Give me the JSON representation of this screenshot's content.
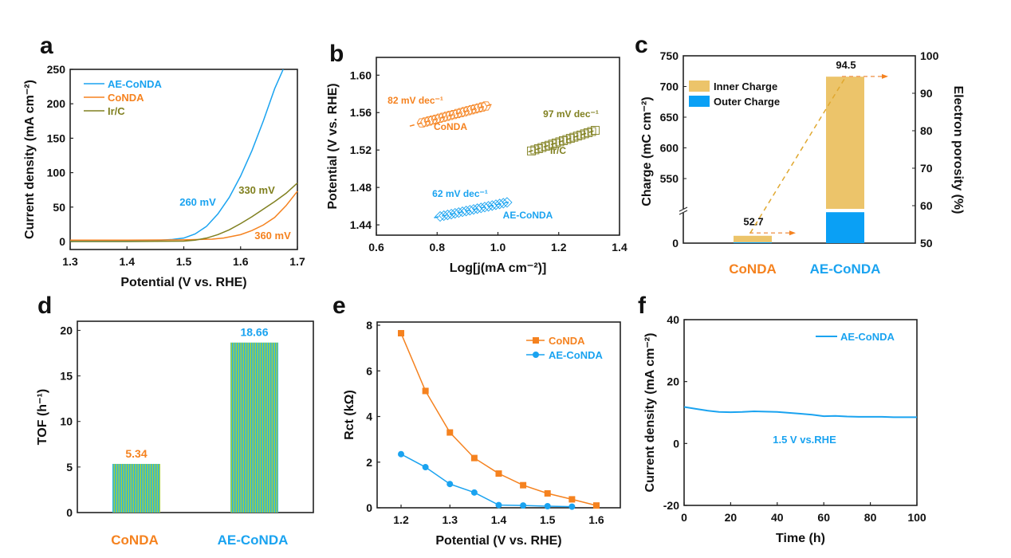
{
  "colors": {
    "ae": "#1aa3f0",
    "conda": "#f5821f",
    "irc": "#808020",
    "inner": "#ecc46a",
    "outer": "#0aa0f5",
    "bar_a": "#a6d13a",
    "bar_b": "#29b3e6"
  },
  "chart_data": [
    {
      "panel": "a",
      "type": "line",
      "xlabel": "Potential (V vs. RHE)",
      "ylabel": "Current density (mA cm⁻²)",
      "xlim": [
        1.3,
        1.7
      ],
      "ylim": [
        -11.6,
        250
      ],
      "xticks": [
        "1.3",
        "1.4",
        "1.5",
        "1.6",
        "1.7"
      ],
      "yticks": [
        "0",
        "50",
        "100",
        "150",
        "200",
        "250"
      ],
      "legend": "top-left",
      "series": [
        {
          "name": "AE-CoNDA",
          "color": "ae",
          "x": [
            1.3,
            1.4,
            1.46,
            1.48,
            1.5,
            1.52,
            1.54,
            1.56,
            1.58,
            1.6,
            1.62,
            1.64,
            1.66,
            1.675
          ],
          "y": [
            0.5,
            1,
            2,
            3,
            5,
            11,
            22,
            40,
            64,
            95,
            132,
            175,
            222,
            250
          ]
        },
        {
          "name": "CoNDA",
          "color": "conda",
          "x": [
            1.3,
            1.4,
            1.5,
            1.55,
            1.57,
            1.6,
            1.62,
            1.64,
            1.66,
            1.68,
            1.7
          ],
          "y": [
            2,
            2,
            2.5,
            3.5,
            5,
            10,
            16,
            24,
            35,
            52,
            73
          ]
        },
        {
          "name": "Ir/C",
          "color": "irc",
          "x": [
            1.3,
            1.4,
            1.5,
            1.52,
            1.54,
            1.56,
            1.58,
            1.6,
            1.62,
            1.64,
            1.66,
            1.68,
            1.7
          ],
          "y": [
            0,
            0,
            0.5,
            2,
            5,
            10,
            17,
            26,
            36,
            47,
            58,
            70,
            85
          ]
        }
      ],
      "annotations": [
        {
          "text": "260 mV",
          "color": "ae"
        },
        {
          "text": "330 mV",
          "color": "irc"
        },
        {
          "text": "360 mV",
          "color": "conda"
        }
      ]
    },
    {
      "panel": "b",
      "type": "scatter",
      "xlabel": "Log[j(mA cm⁻²)]",
      "ylabel": "Potential (V vs. RHE)",
      "xlim": [
        0.6,
        1.4
      ],
      "ylim": [
        1.429,
        1.619
      ],
      "xticks": [
        "0.6",
        "0.8",
        "1.0",
        "1.2",
        "1.4"
      ],
      "yticks": [
        "1.44",
        "1.48",
        "1.52",
        "1.56",
        "1.60"
      ],
      "series": [
        {
          "name": "CoNDA",
          "color": "conda",
          "marker": "hexagon",
          "x0": 0.75,
          "x1": 0.96,
          "y0": 1.549,
          "y1": 1.567,
          "fit": [
            0.71,
            0.98
          ],
          "slope_label": "82 mV dec⁻¹"
        },
        {
          "name": "Ir/C",
          "color": "irc",
          "marker": "square",
          "x0": 1.11,
          "x1": 1.32,
          "y0": 1.519,
          "y1": 1.541,
          "fit": [
            1.1,
            1.325
          ],
          "slope_label": "97 mV dec⁻¹"
        },
        {
          "name": "AE-CoNDA",
          "color": "ae",
          "marker": "diamond",
          "x0": 0.81,
          "x1": 1.03,
          "y0": 1.449,
          "y1": 1.464,
          "fit": [
            0.79,
            1.035
          ],
          "slope_label": "62 mV dec⁻¹"
        }
      ]
    },
    {
      "panel": "c",
      "type": "bar",
      "categories": [
        "CoNDA",
        "AE-CoNDA"
      ],
      "ylabel": "Charge (mC cm⁻²)",
      "y2label": "Electron porosity (%)",
      "yticks": [
        "0",
        "550",
        "600",
        "650",
        "700",
        "750"
      ],
      "y2ticks": [
        "50",
        "60",
        "70",
        "80",
        "90",
        "100"
      ],
      "y2lim": [
        50,
        100
      ],
      "series": [
        {
          "name": "Inner Charge",
          "color": "inner",
          "values": [
            23,
            716
          ]
        },
        {
          "name": "Outer Charge",
          "color": "outer",
          "values": [
            3,
            97
          ]
        }
      ],
      "porosity": [
        52.7,
        94.5
      ],
      "porosity_labels": [
        "52.7",
        "94.5"
      ],
      "legend": "top-left"
    },
    {
      "panel": "d",
      "type": "bar",
      "categories": [
        "CoNDA",
        "AE-CoNDA"
      ],
      "ylabel": "TOF (h⁻¹)",
      "ylim": [
        0,
        21
      ],
      "yticks": [
        "0",
        "5",
        "10",
        "15",
        "20"
      ],
      "values": [
        5.34,
        18.66
      ],
      "value_labels": [
        "5.34",
        "18.66"
      ]
    },
    {
      "panel": "e",
      "type": "line",
      "xlabel": "Potential (V vs. RHE)",
      "ylabel": "Rct (kΩ)",
      "xlim": [
        1.151,
        1.649
      ],
      "ylim": [
        0,
        8.14
      ],
      "xticks": [
        "1.2",
        "1.3",
        "1.4",
        "1.5",
        "1.6"
      ],
      "yticks": [
        "0",
        "2",
        "4",
        "6",
        "8"
      ],
      "legend": "top-right",
      "series": [
        {
          "name": "CoNDA",
          "color": "conda",
          "marker": "square",
          "x": [
            1.2,
            1.25,
            1.3,
            1.35,
            1.4,
            1.45,
            1.5,
            1.55,
            1.6
          ],
          "y": [
            7.65,
            5.12,
            3.3,
            2.18,
            1.5,
            0.99,
            0.63,
            0.37,
            0.1
          ]
        },
        {
          "name": "AE-CoNDA",
          "color": "ae",
          "marker": "circle",
          "x": [
            1.2,
            1.25,
            1.3,
            1.35,
            1.4,
            1.45,
            1.5,
            1.55
          ],
          "y": [
            2.35,
            1.78,
            1.04,
            0.67,
            0.12,
            0.1,
            0.07,
            0.05
          ]
        }
      ]
    },
    {
      "panel": "f",
      "type": "line",
      "xlabel": "Time (h)",
      "ylabel": "Current density (mA cm⁻²)",
      "xlim": [
        0,
        100
      ],
      "ylim": [
        -20,
        40
      ],
      "xticks": [
        "0",
        "20",
        "40",
        "60",
        "80",
        "100"
      ],
      "yticks": [
        "-20",
        "0",
        "20",
        "40"
      ],
      "legend": "top-right",
      "series": [
        {
          "name": "AE-CoNDA",
          "color": "ae",
          "x": [
            0,
            5,
            10,
            15,
            20,
            25,
            30,
            35,
            40,
            45,
            50,
            55,
            60,
            65,
            70,
            75,
            80,
            85,
            90,
            95,
            100
          ],
          "y": [
            11.8,
            11.2,
            10.6,
            10.2,
            10.1,
            10.2,
            10.4,
            10.3,
            10.2,
            9.9,
            9.6,
            9.3,
            8.8,
            8.9,
            8.7,
            8.6,
            8.6,
            8.6,
            8.5,
            8.5,
            8.5
          ]
        }
      ],
      "annotation": "1.5 V vs.RHE"
    }
  ],
  "panel_letters": [
    "a",
    "b",
    "c",
    "d",
    "e",
    "f"
  ]
}
